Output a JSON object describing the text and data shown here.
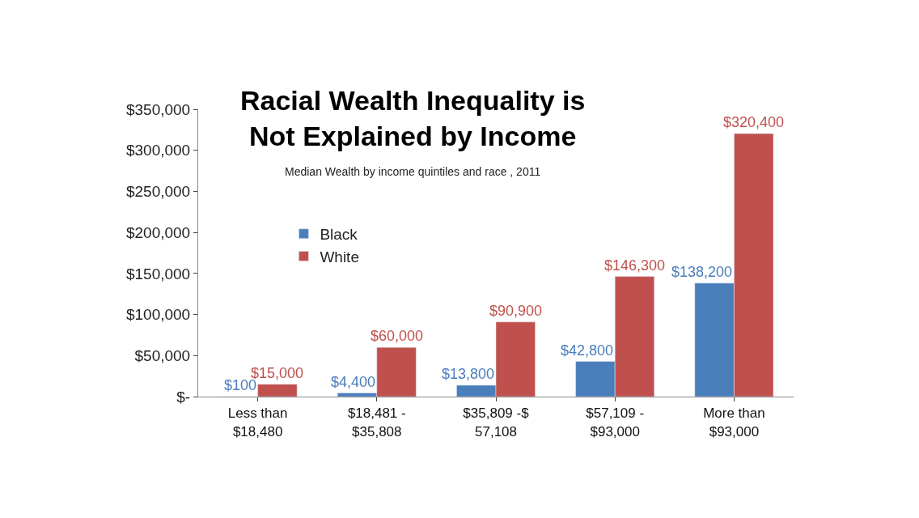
{
  "chart_data": {
    "type": "bar",
    "title": "Racial Wealth Inequality is\nNot Explained by Income",
    "subtitle": "Median Wealth by income quintiles and race , 2011",
    "categories": [
      "Less than\n$18,480",
      "$18,481 -\n$35,808",
      "$35,809 -$\n57,108",
      "$57,109 -\n$93,000",
      "More than\n$93,000"
    ],
    "series": [
      {
        "name": "Black",
        "color": "#4a7ebb",
        "values": [
          100,
          4400,
          13800,
          42800,
          138200
        ],
        "value_labels": [
          "$100",
          "$4,400",
          "$13,800",
          "$42,800",
          "$138,200"
        ]
      },
      {
        "name": "White",
        "color": "#c0504d",
        "values": [
          15000,
          60000,
          90900,
          146300,
          320400
        ],
        "value_labels": [
          "$15,000",
          "$60,000",
          "$90,900",
          "$146,300",
          "$320,400"
        ]
      }
    ],
    "ylim": [
      0,
      350000
    ],
    "yticks": [
      {
        "value": 0,
        "label": "$-"
      },
      {
        "value": 50000,
        "label": "$50,000"
      },
      {
        "value": 100000,
        "label": "$100,000"
      },
      {
        "value": 150000,
        "label": "$150,000"
      },
      {
        "value": 200000,
        "label": "$200,000"
      },
      {
        "value": 250000,
        "label": "$250,000"
      },
      {
        "value": 300000,
        "label": "$300,000"
      },
      {
        "value": 350000,
        "label": "$350,000"
      }
    ],
    "legend": "top left"
  }
}
